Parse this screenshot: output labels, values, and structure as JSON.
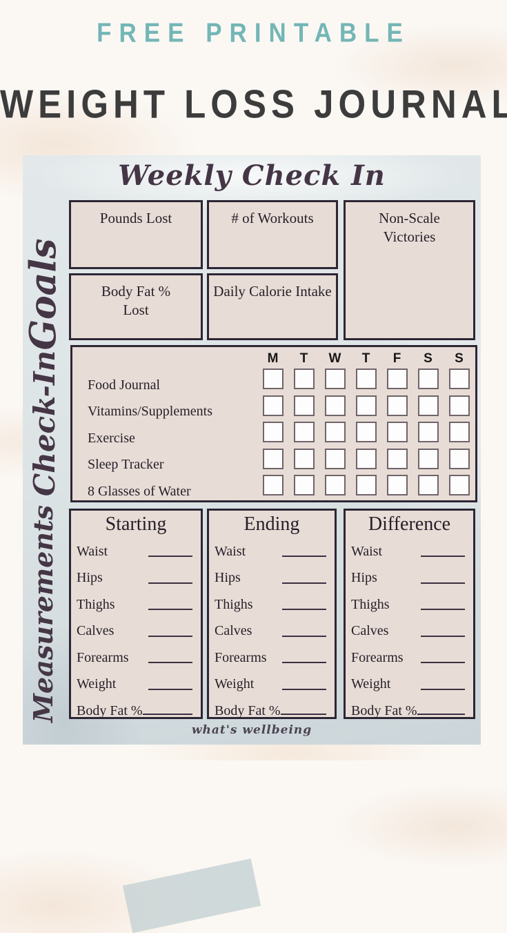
{
  "header": {
    "eyebrow": "FREE PRINTABLE",
    "title": "WEIGHT LOSS JOURNAL"
  },
  "journal": {
    "title": "Weekly Check In",
    "goals": {
      "label": "Goals",
      "boxes": [
        "Pounds Lost",
        "# of Workouts",
        "Non-Scale Victories",
        "Body Fat % Lost",
        "Daily Calorie Intake"
      ]
    },
    "checkin": {
      "label": "Check-In",
      "days": [
        "M",
        "T",
        "W",
        "T",
        "F",
        "S",
        "S"
      ],
      "rows": [
        "Food Journal",
        "Vitamins/Supplements",
        "Exercise",
        "Sleep Tracker",
        "8 Glasses of Water"
      ]
    },
    "measurements": {
      "label": "Measurements",
      "columns": [
        "Starting",
        "Ending",
        "Difference"
      ],
      "fields": [
        "Waist",
        "Hips",
        "Thighs",
        "Calves",
        "Forearms",
        "Weight",
        "Body Fat %"
      ]
    },
    "watermark": "what's wellbeing"
  },
  "colors": {
    "accent_teal": "#74b6b6",
    "title_dark": "#3c3c3c",
    "box_fill": "#e8dcd6",
    "box_border": "#2d2634",
    "journal_marble": "#dde4e6",
    "script_purple": "#453646"
  }
}
